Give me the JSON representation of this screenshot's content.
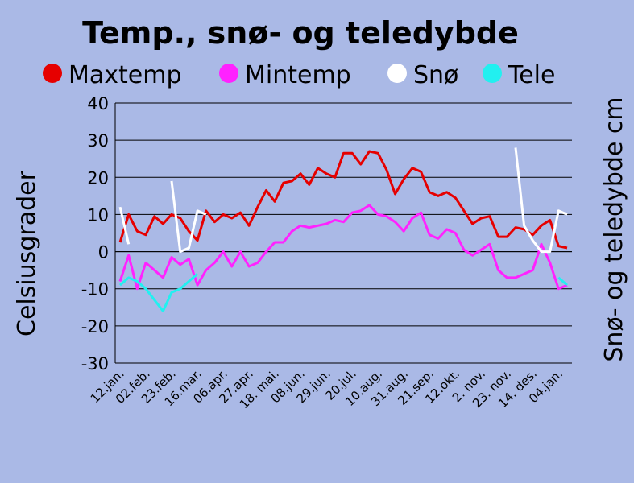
{
  "chart_data": {
    "type": "line",
    "title": "Temp., snø- og teledybde",
    "ylabel": "Celsiusgrader",
    "y2label": "Snø- og teledybde cm",
    "ylim": [
      -30,
      40
    ],
    "yticks": [
      40,
      30,
      20,
      10,
      0,
      -10,
      -20,
      -30
    ],
    "grid": true,
    "legend_position": "top",
    "x_tick_labels": [
      "12.jan.",
      "02.feb.",
      "23.feb.",
      "16.mar.",
      "06.apr.",
      "27.apr.",
      "18. mai.",
      "08.jun.",
      "29.jun.",
      "20.jul.",
      "10.aug.",
      "31.aug.",
      "21.sep.",
      "12.okt.",
      "2. nov.",
      "23. nov.",
      "14. des.",
      "04.jan."
    ],
    "x_count": 53,
    "background_color": "#aab9e6",
    "series": [
      {
        "name": "Maxtemp",
        "color": "#e60000",
        "values": [
          2.5,
          10,
          5.5,
          4.5,
          9.5,
          7.5,
          10,
          9,
          5.5,
          3,
          11,
          8,
          10,
          9,
          10.5,
          7,
          12,
          16.5,
          13.5,
          18.5,
          19,
          21,
          18,
          22.5,
          21,
          20,
          26.5,
          26.5,
          23.5,
          27,
          26.5,
          22,
          15.5,
          19.5,
          22.5,
          21.5,
          16,
          15,
          16,
          14.5,
          11,
          7.5,
          9,
          9.5,
          4,
          4,
          6.5,
          6,
          4.5,
          7,
          8.5,
          1.5,
          1
        ]
      },
      {
        "name": "Mintemp",
        "color": "#ff22ff",
        "values": [
          -8,
          -1,
          -10,
          -3,
          -5,
          -7,
          -1.5,
          -3.5,
          -2,
          -9,
          -5,
          -3,
          0,
          -4,
          0,
          -4,
          -3,
          0,
          2.5,
          2.5,
          5.5,
          7,
          6.5,
          7,
          7.5,
          8.5,
          8,
          10.5,
          11,
          12.5,
          10,
          9.5,
          8,
          5.5,
          9,
          10.5,
          4.5,
          3.5,
          6,
          5,
          0.5,
          -1,
          0.5,
          2,
          -5,
          -7,
          -7,
          -6,
          -5,
          2,
          -3,
          -10,
          -9
        ]
      },
      {
        "name": "Snø",
        "color": "#ffffff",
        "values": [
          12,
          2,
          null,
          null,
          null,
          null,
          19,
          0,
          1,
          11,
          10,
          null,
          10,
          null,
          8,
          null,
          null,
          null,
          null,
          null,
          null,
          null,
          null,
          null,
          null,
          null,
          null,
          null,
          null,
          null,
          null,
          null,
          null,
          null,
          null,
          null,
          null,
          null,
          null,
          null,
          null,
          null,
          null,
          null,
          null,
          null,
          28,
          7,
          3,
          0,
          0,
          11,
          10
        ]
      },
      {
        "name": "Tele",
        "color": "#22f0f0",
        "values": [
          -9,
          -7,
          -8,
          -10,
          -13,
          -16,
          -11,
          -10,
          -8,
          -6,
          null,
          null,
          null,
          null,
          null,
          null,
          null,
          null,
          null,
          null,
          null,
          null,
          null,
          null,
          null,
          null,
          null,
          null,
          null,
          null,
          null,
          null,
          null,
          null,
          null,
          null,
          null,
          null,
          null,
          null,
          null,
          null,
          null,
          null,
          null,
          null,
          null,
          null,
          null,
          null,
          null,
          -7,
          -9
        ]
      }
    ]
  }
}
